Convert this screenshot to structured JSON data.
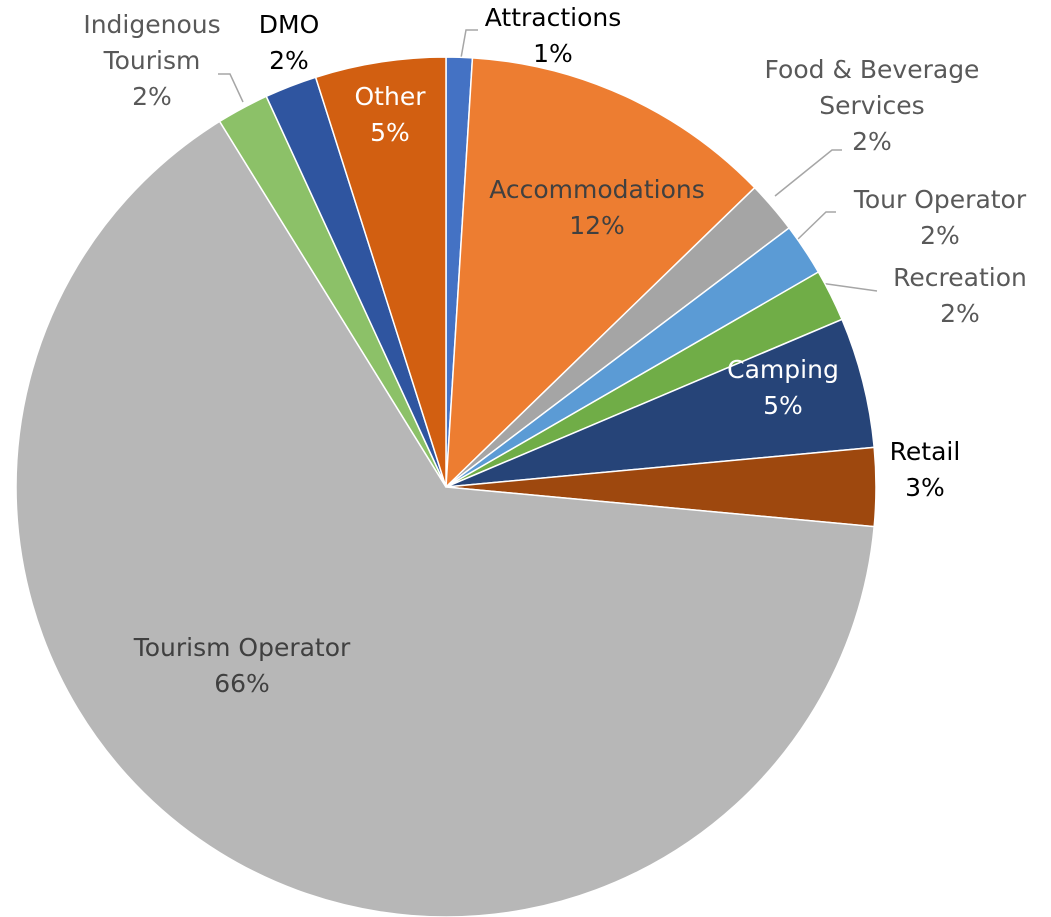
{
  "chart_data": {
    "type": "pie",
    "categories": [
      "Attractions",
      "Accommodations",
      "Food & Beverage Services",
      "Tour Operator",
      "Recreation",
      "Camping",
      "Retail",
      "Tourism Operator",
      "Indigenous Tourism",
      "DMO",
      "Other"
    ],
    "values": [
      1,
      12,
      2,
      2,
      2,
      5,
      3,
      66,
      2,
      2,
      5
    ],
    "value_labels": [
      "1%",
      "12%",
      "2%",
      "2%",
      "2%",
      "5%",
      "3%",
      "66%",
      "2%",
      "2%",
      "5%"
    ],
    "colors": [
      "#4472c4",
      "#ed7d31",
      "#a5a5a5",
      "#5b9bd5",
      "#70ad47",
      "#264478",
      "#9e480e",
      "#b7b7b7",
      "#8cc168",
      "#2f55a0",
      "#d25f11"
    ]
  }
}
